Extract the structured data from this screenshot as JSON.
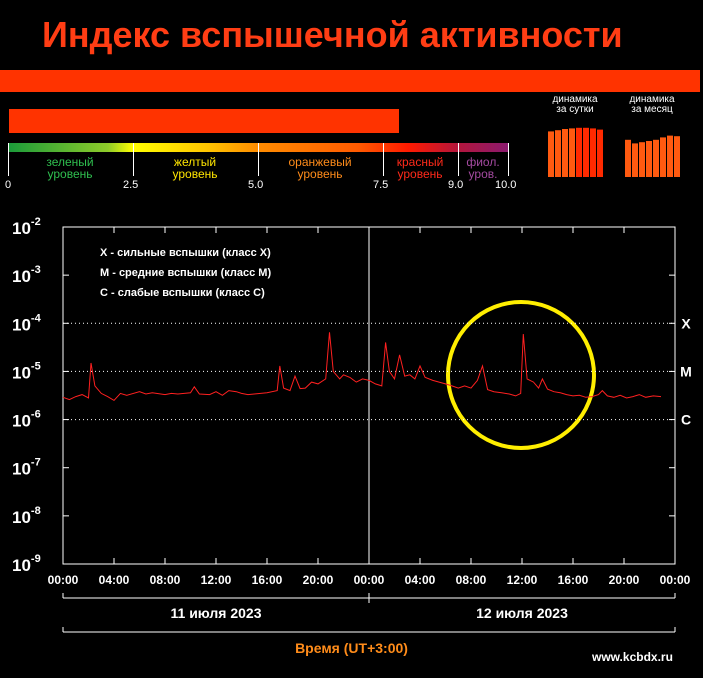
{
  "title": "Индекс вспышечной активности",
  "scale": {
    "current_index": 7.8,
    "levels": [
      {
        "line1": "зеленый",
        "line2": "уровень",
        "color": "#2fbf4f"
      },
      {
        "line1": "желтый",
        "line2": "уровень",
        "color": "#ffe600"
      },
      {
        "line1": "оранжевый",
        "line2": "уровень",
        "color": "#ff8c1a"
      },
      {
        "line1": "красный",
        "line2": "уровень",
        "color": "#ff2a1a"
      },
      {
        "line1": "фиол.",
        "line2": "уров.",
        "color": "#a44aa0"
      }
    ],
    "ticks": [
      "0",
      "2.5",
      "5.0",
      "7.5",
      "9.0",
      "10.0"
    ]
  },
  "dynamics": {
    "day_label_1": "динамика",
    "day_label_2": "за сутки",
    "month_label_1": "динамика",
    "month_label_2": "за месяц",
    "day_values": [
      7.6,
      7.8,
      8.0,
      8.1,
      8.2,
      8.2,
      8.1,
      7.9
    ],
    "month_values": [
      6.2,
      5.6,
      5.8,
      6.0,
      6.2,
      6.6,
      6.9,
      6.8
    ]
  },
  "chart_data": {
    "type": "line",
    "title": "",
    "xlabel": "Время (UT+3:00)",
    "ylabel": "",
    "y_scale": "log",
    "ylim": [
      1e-09,
      0.01
    ],
    "xlim_hours": [
      0,
      48
    ],
    "y_tick_labels": [
      {
        "base": "10",
        "exp": "-2"
      },
      {
        "base": "10",
        "exp": "-3"
      },
      {
        "base": "10",
        "exp": "-4"
      },
      {
        "base": "10",
        "exp": "-5"
      },
      {
        "base": "10",
        "exp": "-6"
      },
      {
        "base": "10",
        "exp": "-7"
      },
      {
        "base": "10",
        "exp": "-8"
      },
      {
        "base": "10",
        "exp": "-9"
      }
    ],
    "x_tick_labels": [
      "00:00",
      "04:00",
      "08:00",
      "12:00",
      "16:00",
      "20:00",
      "00:00",
      "04:00",
      "08:00",
      "12:00",
      "16:00",
      "20:00",
      "00:00"
    ],
    "date_labels": [
      "11 июля 2023",
      "12 июля 2023"
    ],
    "class_labels": [
      {
        "label": "X",
        "value": 0.0001
      },
      {
        "label": "M",
        "value": 1e-05
      },
      {
        "label": "C",
        "value": 1e-06
      }
    ],
    "legend": [
      "X - сильные вспышки (класс X)",
      "M - средние вспышки (класс M)",
      "C - слабые вспышки (класс C)"
    ],
    "grid": "dotted at 1e-4, 1e-5, 1e-6",
    "highlight": "circle around 12 июля 2023 08:00-17:00",
    "series": [
      {
        "color": "#ff2020",
        "points": [
          [
            0.0,
            2.9e-06
          ],
          [
            0.5,
            2.6e-06
          ],
          [
            1.0,
            3e-06
          ],
          [
            1.5,
            3.3e-06
          ],
          [
            2.0,
            2.8e-06
          ],
          [
            2.2,
            1.5e-05
          ],
          [
            2.5,
            5e-06
          ],
          [
            3.0,
            3.5e-06
          ],
          [
            3.5,
            3e-06
          ],
          [
            4.0,
            2.5e-06
          ],
          [
            4.5,
            3.5e-06
          ],
          [
            5.0,
            3.2e-06
          ],
          [
            6.0,
            3.8e-06
          ],
          [
            6.5,
            3.4e-06
          ],
          [
            7.0,
            3.6e-06
          ],
          [
            8.0,
            3.3e-06
          ],
          [
            8.5,
            3.5e-06
          ],
          [
            9.0,
            3.4e-06
          ],
          [
            10.0,
            3.6e-06
          ],
          [
            10.3,
            4.8e-06
          ],
          [
            10.7,
            3.4e-06
          ],
          [
            11.5,
            3.3e-06
          ],
          [
            12.0,
            3.8e-06
          ],
          [
            12.5,
            3.2e-06
          ],
          [
            13.0,
            4e-06
          ],
          [
            13.6,
            3.8e-06
          ],
          [
            14.0,
            3.5e-06
          ],
          [
            14.5,
            3.3e-06
          ],
          [
            15.0,
            3.4e-06
          ],
          [
            15.5,
            3.5e-06
          ],
          [
            16.0,
            3.6e-06
          ],
          [
            16.8,
            4e-06
          ],
          [
            17.0,
            1.3e-05
          ],
          [
            17.3,
            4.5e-06
          ],
          [
            17.8,
            4e-06
          ],
          [
            18.2,
            8e-06
          ],
          [
            18.6,
            4.4e-06
          ],
          [
            19.0,
            4.5e-06
          ],
          [
            19.5,
            6e-06
          ],
          [
            20.0,
            5.5e-06
          ],
          [
            20.6,
            7e-06
          ],
          [
            20.9,
            6.5e-05
          ],
          [
            21.2,
            1e-05
          ],
          [
            21.7,
            7e-06
          ],
          [
            22.0,
            8.5e-06
          ],
          [
            22.5,
            7.5e-06
          ],
          [
            23.0,
            6e-06
          ],
          [
            23.5,
            7e-06
          ],
          [
            24.0,
            6.5e-06
          ],
          [
            24.5,
            5.5e-06
          ],
          [
            25.0,
            5e-06
          ],
          [
            25.3,
            4e-05
          ],
          [
            25.6,
            1e-05
          ],
          [
            26.0,
            7e-06
          ],
          [
            26.4,
            2.2e-05
          ],
          [
            26.8,
            8e-06
          ],
          [
            27.2,
            8.5e-06
          ],
          [
            27.6,
            7e-06
          ],
          [
            28.0,
            1.3e-05
          ],
          [
            28.4,
            7.5e-06
          ],
          [
            29.0,
            6.5e-06
          ],
          [
            29.5,
            6e-06
          ],
          [
            30.0,
            5.5e-06
          ],
          [
            30.5,
            5e-06
          ],
          [
            31.0,
            4.5e-06
          ],
          [
            31.5,
            5e-06
          ],
          [
            32.0,
            4.5e-06
          ],
          [
            32.5,
            6.5e-06
          ],
          [
            32.9,
            1.3e-05
          ],
          [
            33.3,
            4.2e-06
          ],
          [
            33.8,
            3.8e-06
          ],
          [
            34.4,
            3.6e-06
          ],
          [
            35.0,
            3.4e-06
          ],
          [
            35.5,
            3.1e-06
          ],
          [
            35.9,
            3.5e-06
          ],
          [
            36.1,
            6e-05
          ],
          [
            36.4,
            7e-06
          ],
          [
            36.9,
            6e-06
          ],
          [
            37.3,
            4.5e-06
          ],
          [
            37.6,
            7e-06
          ],
          [
            38.0,
            4.3e-06
          ],
          [
            38.5,
            3.8e-06
          ],
          [
            39.0,
            3.6e-06
          ],
          [
            39.5,
            3.3e-06
          ],
          [
            40.0,
            3.1e-06
          ],
          [
            40.5,
            3.2e-06
          ],
          [
            41.0,
            2.9e-06
          ],
          [
            41.5,
            3e-06
          ],
          [
            42.0,
            3.3e-06
          ],
          [
            42.3,
            4e-06
          ],
          [
            42.7,
            3.1e-06
          ],
          [
            43.2,
            2.9e-06
          ],
          [
            43.7,
            3.2e-06
          ],
          [
            44.2,
            2.8e-06
          ],
          [
            44.7,
            3e-06
          ],
          [
            45.2,
            3.3e-06
          ],
          [
            45.7,
            2.9e-06
          ],
          [
            46.3,
            3.1e-06
          ],
          [
            46.9,
            3e-06
          ]
        ]
      }
    ]
  },
  "footer": {
    "time_label": "Время (UT+3:00)",
    "site": "www.kcbdx.ru"
  }
}
